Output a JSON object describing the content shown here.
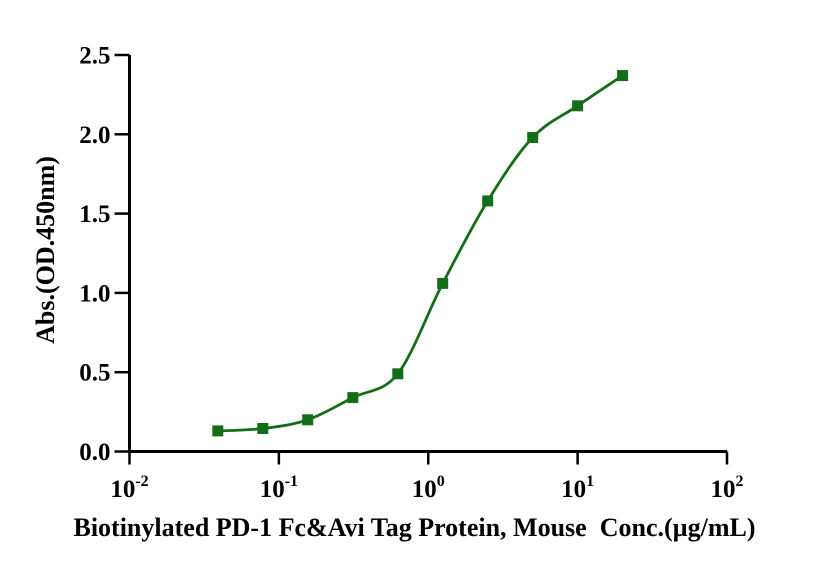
{
  "figure": {
    "background": "#ffffff"
  },
  "chart_data": {
    "type": "scatter",
    "subtype": "dose-response-binding-curve",
    "title": "",
    "xlabel": "Biotinylated PD-1 Fc&Avi Tag Protein, Mouse  Conc.(µg/mL)",
    "ylabel": "Abs.(OD.450nm)",
    "x_scale": "log10",
    "xlim": [
      0.01,
      100
    ],
    "ylim": [
      0,
      2.5
    ],
    "x_tick_base": "10",
    "x_tick_exponents": [
      "-2",
      "-1",
      "0",
      "1",
      "2"
    ],
    "y_tick_labels": [
      "0.0",
      "0.5",
      "1.0",
      "1.5",
      "2.0",
      "2.5"
    ],
    "grid": false,
    "legend_position": "none",
    "axis_color": "#000000",
    "line_color": "#146e19",
    "marker_color": "#146e19",
    "marker_shape": "square",
    "series": [
      {
        "x": [
          0.039,
          0.078,
          0.156,
          0.3125,
          0.625,
          1.25,
          2.5,
          5,
          10,
          20
        ],
        "y": [
          0.13,
          0.145,
          0.2,
          0.34,
          0.49,
          1.06,
          1.58,
          1.98,
          2.18,
          2.37
        ],
        "curve": "smooth sigmoidal fit through points"
      }
    ]
  }
}
